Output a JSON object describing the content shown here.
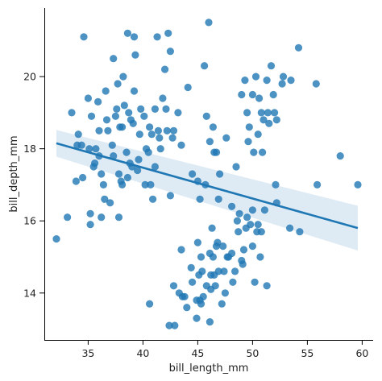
{
  "chart_data": {
    "type": "scatter",
    "title": "",
    "xlabel": "bill_length_mm",
    "ylabel": "bill_depth_mm",
    "xlim": [
      31,
      61
    ],
    "ylim": [
      12.7,
      21.9
    ],
    "xticks": [
      35,
      40,
      45,
      50,
      55,
      60
    ],
    "yticks": [
      14,
      16,
      18,
      20
    ],
    "grid": false,
    "colors": {
      "points": "#1f77b4",
      "line": "#1f77b4",
      "band": "#1f77b4"
    },
    "regression": {
      "x": [
        32.1,
        59.6
      ],
      "y": [
        18.15,
        15.8
      ],
      "ci_upper": [
        18.52,
        16.42
      ],
      "ci_lower": [
        17.78,
        15.18
      ]
    },
    "points": [
      [
        32.1,
        15.5
      ],
      [
        33.1,
        16.1
      ],
      [
        33.5,
        19.0
      ],
      [
        33.9,
        17.1
      ],
      [
        34.0,
        18.1
      ],
      [
        34.1,
        18.4
      ],
      [
        34.4,
        18.1
      ],
      [
        34.5,
        17.2
      ],
      [
        34.6,
        21.1
      ],
      [
        35.0,
        19.4
      ],
      [
        35.1,
        18.0
      ],
      [
        35.2,
        16.2
      ],
      [
        35.2,
        15.9
      ],
      [
        35.3,
        18.9
      ],
      [
        35.5,
        17.5
      ],
      [
        35.6,
        17.6
      ],
      [
        35.7,
        18.0
      ],
      [
        35.9,
        19.3
      ],
      [
        36.0,
        17.8
      ],
      [
        36.0,
        18.5
      ],
      [
        36.2,
        16.1
      ],
      [
        36.2,
        17.3
      ],
      [
        36.4,
        17.0
      ],
      [
        36.5,
        16.6
      ],
      [
        36.6,
        19.6
      ],
      [
        36.7,
        18.8
      ],
      [
        36.8,
        18.5
      ],
      [
        37.0,
        16.5
      ],
      [
        37.2,
        18.1
      ],
      [
        37.3,
        17.8
      ],
      [
        37.3,
        20.5
      ],
      [
        37.5,
        18.9
      ],
      [
        37.6,
        19.1
      ],
      [
        37.7,
        19.8
      ],
      [
        37.8,
        16.1
      ],
      [
        37.8,
        17.3
      ],
      [
        37.9,
        18.6
      ],
      [
        38.0,
        17.1
      ],
      [
        38.1,
        17.0
      ],
      [
        38.1,
        18.6
      ],
      [
        38.2,
        20.0
      ],
      [
        38.3,
        19.2
      ],
      [
        38.5,
        17.9
      ],
      [
        38.6,
        17.2
      ],
      [
        38.6,
        21.2
      ],
      [
        38.7,
        19.0
      ],
      [
        38.8,
        17.6
      ],
      [
        38.9,
        18.8
      ],
      [
        39.0,
        17.5
      ],
      [
        39.1,
        18.7
      ],
      [
        39.2,
        19.6
      ],
      [
        39.2,
        21.1
      ],
      [
        39.3,
        20.6
      ],
      [
        39.5,
        17.4
      ],
      [
        39.6,
        17.7
      ],
      [
        39.7,
        18.4
      ],
      [
        39.8,
        19.1
      ],
      [
        40.1,
        18.9
      ],
      [
        40.2,
        17.0
      ],
      [
        40.3,
        18.0
      ],
      [
        40.5,
        17.9
      ],
      [
        40.6,
        18.6
      ],
      [
        40.7,
        17.0
      ],
      [
        40.8,
        18.4
      ],
      [
        40.9,
        16.6
      ],
      [
        41.1,
        17.5
      ],
      [
        41.1,
        19.1
      ],
      [
        41.3,
        21.1
      ],
      [
        41.4,
        18.5
      ],
      [
        41.5,
        18.3
      ],
      [
        41.6,
        18.0
      ],
      [
        41.8,
        19.4
      ],
      [
        42.0,
        20.2
      ],
      [
        42.1,
        19.1
      ],
      [
        42.2,
        18.5
      ],
      [
        42.3,
        21.2
      ],
      [
        42.5,
        16.7
      ],
      [
        42.7,
        18.3
      ],
      [
        42.8,
        18.5
      ],
      [
        43.2,
        19.0
      ],
      [
        43.5,
        18.1
      ],
      [
        44.1,
        19.7
      ],
      [
        44.5,
        17.3
      ],
      [
        45.0,
        17.1
      ],
      [
        45.6,
        20.3
      ],
      [
        45.8,
        18.9
      ],
      [
        46.0,
        21.5
      ],
      [
        46.1,
        18.2
      ],
      [
        46.5,
        17.9
      ],
      [
        46.7,
        17.9
      ],
      [
        40.6,
        13.7
      ],
      [
        42.4,
        13.1
      ],
      [
        42.8,
        14.2
      ],
      [
        43.3,
        14.0
      ],
      [
        43.5,
        15.2
      ],
      [
        44.0,
        13.6
      ],
      [
        44.5,
        14.3
      ],
      [
        44.9,
        13.8
      ],
      [
        45.1,
        14.5
      ],
      [
        45.2,
        13.8
      ],
      [
        45.3,
        13.7
      ],
      [
        45.5,
        13.9
      ],
      [
        45.8,
        14.2
      ],
      [
        46.1,
        13.2
      ],
      [
        46.2,
        14.5
      ],
      [
        46.4,
        15.0
      ],
      [
        46.5,
        14.5
      ],
      [
        46.6,
        14.2
      ],
      [
        46.8,
        15.4
      ],
      [
        47.2,
        13.7
      ],
      [
        47.5,
        14.0
      ],
      [
        47.8,
        15.0
      ],
      [
        48.1,
        15.1
      ],
      [
        48.4,
        14.6
      ],
      [
        48.7,
        15.7
      ],
      [
        49.0,
        14.9
      ],
      [
        49.2,
        15.2
      ],
      [
        49.5,
        16.1
      ],
      [
        49.8,
        15.9
      ],
      [
        50.0,
        15.3
      ],
      [
        50.2,
        14.3
      ],
      [
        50.4,
        15.7
      ],
      [
        50.5,
        15.9
      ],
      [
        50.7,
        15.0
      ],
      [
        51.1,
        16.3
      ],
      [
        51.3,
        14.2
      ],
      [
        52.1,
        17.0
      ],
      [
        52.2,
        16.5
      ],
      [
        53.4,
        15.8
      ],
      [
        54.3,
        15.7
      ],
      [
        55.9,
        17.0
      ],
      [
        59.6,
        17.0
      ],
      [
        46.9,
        16.6
      ],
      [
        47.6,
        18.3
      ],
      [
        48.5,
        17.5
      ],
      [
        49.0,
        19.5
      ],
      [
        49.5,
        19.0
      ],
      [
        49.7,
        18.6
      ],
      [
        50.0,
        19.5
      ],
      [
        50.3,
        20.0
      ],
      [
        50.5,
        18.4
      ],
      [
        50.6,
        19.4
      ],
      [
        50.8,
        19.0
      ],
      [
        51.0,
        18.8
      ],
      [
        51.3,
        19.9
      ],
      [
        51.4,
        19.0
      ],
      [
        51.7,
        20.3
      ],
      [
        52.0,
        19.0
      ],
      [
        52.2,
        18.8
      ],
      [
        52.7,
        19.8
      ],
      [
        53.5,
        19.9
      ],
      [
        54.2,
        20.8
      ],
      [
        55.8,
        19.8
      ],
      [
        58.0,
        17.8
      ],
      [
        42.5,
        20.7
      ],
      [
        45.2,
        16.6
      ],
      [
        49.3,
        19.9
      ],
      [
        50.9,
        17.9
      ],
      [
        51.9,
        19.5
      ],
      [
        46.4,
        18.6
      ],
      [
        47.0,
        17.3
      ],
      [
        49.6,
        18.2
      ],
      [
        50.1,
        17.9
      ],
      [
        52.8,
        20.0
      ],
      [
        51.5,
        18.7
      ],
      [
        45.7,
        17.0
      ],
      [
        48.1,
        16.4
      ],
      [
        47.4,
        14.6
      ],
      [
        46.3,
        15.8
      ],
      [
        48.8,
        16.2
      ],
      [
        43.6,
        13.9
      ],
      [
        45.4,
        14.6
      ],
      [
        46.7,
        15.3
      ],
      [
        47.3,
        15.3
      ],
      [
        44.9,
        13.3
      ],
      [
        48.2,
        14.3
      ],
      [
        49.1,
        14.8
      ],
      [
        42.9,
        13.1
      ],
      [
        50.8,
        15.7
      ],
      [
        46.2,
        14.1
      ],
      [
        45.3,
        15.0
      ],
      [
        49.4,
        15.8
      ],
      [
        48.6,
        16.0
      ],
      [
        47.7,
        15.0
      ],
      [
        46.9,
        14.6
      ],
      [
        43.8,
        13.9
      ],
      [
        50.0,
        16.3
      ],
      [
        44.4,
        14.7
      ],
      [
        46.1,
        15.1
      ],
      [
        45.0,
        15.4
      ]
    ]
  }
}
